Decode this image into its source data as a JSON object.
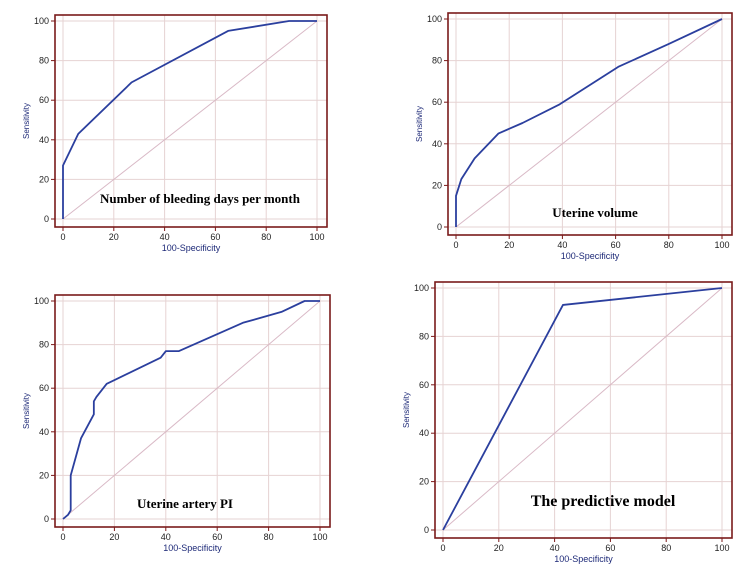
{
  "chart_data": [
    {
      "type": "line",
      "title": "Number  of bleeding days per month",
      "xlabel": "100-Specificity",
      "ylabel": "Sensitivity",
      "xlim": [
        0,
        100
      ],
      "ylim": [
        0,
        100
      ],
      "xticks": [
        0,
        20,
        40,
        60,
        80,
        100
      ],
      "yticks": [
        0,
        20,
        40,
        60,
        80,
        100
      ],
      "grid": true,
      "series": [
        {
          "x": [
            0,
            0,
            6,
            27,
            65,
            89,
            100
          ],
          "y": [
            0,
            27,
            43,
            69,
            95,
            100,
            100
          ]
        }
      ]
    },
    {
      "type": "line",
      "title": "Uterine volume",
      "xlabel": "100-Specificity",
      "ylabel": "Sensitivity",
      "xlim": [
        0,
        100
      ],
      "ylim": [
        0,
        100
      ],
      "xticks": [
        0,
        20,
        40,
        60,
        80,
        100
      ],
      "yticks": [
        0,
        20,
        40,
        60,
        80,
        100
      ],
      "grid": true,
      "series": [
        {
          "x": [
            0,
            0,
            2,
            7,
            16,
            25,
            39,
            61,
            80,
            100
          ],
          "y": [
            0,
            15,
            23,
            33,
            45,
            50,
            59,
            77,
            88,
            100
          ]
        }
      ]
    },
    {
      "type": "line",
      "title": "Uterine artery PI",
      "xlabel": "100-Specificity",
      "ylabel": "Sensitivity",
      "xlim": [
        0,
        100
      ],
      "ylim": [
        0,
        100
      ],
      "xticks": [
        0,
        20,
        40,
        60,
        80,
        100
      ],
      "yticks": [
        0,
        20,
        40,
        60,
        80,
        100
      ],
      "grid": true,
      "series": [
        {
          "x": [
            0,
            2,
            3,
            3,
            7,
            12,
            12,
            13,
            17,
            38,
            40,
            45,
            70,
            85,
            94,
            100
          ],
          "y": [
            0,
            2,
            4,
            20,
            37,
            48,
            54,
            56,
            62,
            74,
            77,
            77,
            90,
            95,
            100,
            100
          ]
        }
      ]
    },
    {
      "type": "line",
      "title": "The predictive model",
      "xlabel": "100-Specificity",
      "ylabel": "Sensitivity",
      "xlim": [
        0,
        100
      ],
      "ylim": [
        0,
        100
      ],
      "xticks": [
        0,
        20,
        40,
        60,
        80,
        100
      ],
      "yticks": [
        0,
        20,
        40,
        60,
        80,
        100
      ],
      "grid": true,
      "series": [
        {
          "x": [
            0,
            43,
            100
          ],
          "y": [
            0,
            93,
            100
          ]
        }
      ]
    }
  ]
}
